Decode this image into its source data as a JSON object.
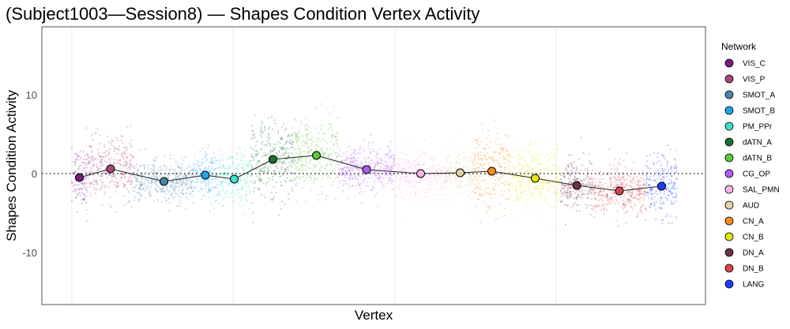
{
  "chart_data": {
    "type": "scatter",
    "title": "(Subject1003—Session8) — Shapes Condition Vertex Activity",
    "xlabel": "Vertex",
    "ylabel": "Shapes Condition Activity",
    "xlim": [
      -3800,
      80200
    ],
    "ylim": [
      -16.6,
      18.6
    ],
    "x_grid_breaks": [
      0,
      20400,
      40900,
      61300
    ],
    "y_ticks": [
      -10,
      0,
      10
    ],
    "y_tick_labels": [
      "-10",
      "0",
      "10"
    ],
    "reference_line": 0,
    "legend_title": "Network",
    "legend_position": "right",
    "networks": [
      {
        "name": "VIS_C",
        "color": "#7a1c80",
        "start": 0,
        "end": 1900,
        "mean": -0.5,
        "sd": 1.8
      },
      {
        "name": "VIS_P",
        "color": "#a8467a",
        "start": 1900,
        "end": 7900,
        "mean": 0.6,
        "sd": 1.9
      },
      {
        "name": "SMOT_A",
        "color": "#4a86a8",
        "start": 7900,
        "end": 15400,
        "mean": -1.0,
        "sd": 1.3
      },
      {
        "name": "SMOT_B",
        "color": "#1fa8ec",
        "start": 15400,
        "end": 18400,
        "mean": -0.2,
        "sd": 1.6
      },
      {
        "name": "PM_PPr",
        "color": "#3fe0cc",
        "start": 18400,
        "end": 22700,
        "mean": -0.7,
        "sd": 1.7
      },
      {
        "name": "dATN_A",
        "color": "#16742a",
        "start": 22700,
        "end": 28200,
        "mean": 1.8,
        "sd": 2.4
      },
      {
        "name": "dATN_B",
        "color": "#5ec83e",
        "start": 28200,
        "end": 33700,
        "mean": 2.3,
        "sd": 2.4
      },
      {
        "name": "CG_OP",
        "color": "#b45af5",
        "start": 33700,
        "end": 40900,
        "mean": 0.5,
        "sd": 1.4
      },
      {
        "name": "SAL_PMN",
        "color": "#fbb4e6",
        "start": 40900,
        "end": 47400,
        "mean": 0.0,
        "sd": 1.6
      },
      {
        "name": "AUD",
        "color": "#e4d2a4",
        "start": 47400,
        "end": 50900,
        "mean": 0.1,
        "sd": 1.5
      },
      {
        "name": "CN_A",
        "color": "#f58c1e",
        "start": 50900,
        "end": 55400,
        "mean": 0.3,
        "sd": 2.6
      },
      {
        "name": "CN_B",
        "color": "#e6e614",
        "start": 55400,
        "end": 61900,
        "mean": -0.6,
        "sd": 2.0
      },
      {
        "name": "DN_A",
        "color": "#6e3248",
        "start": 61900,
        "end": 65900,
        "mean": -1.5,
        "sd": 1.6
      },
      {
        "name": "DN_B",
        "color": "#d2464e",
        "start": 65900,
        "end": 72700,
        "mean": -2.2,
        "sd": 1.6
      },
      {
        "name": "LANG",
        "color": "#1e3cff",
        "start": 72700,
        "end": 76600,
        "mean": -1.6,
        "sd": 2.0
      }
    ]
  }
}
